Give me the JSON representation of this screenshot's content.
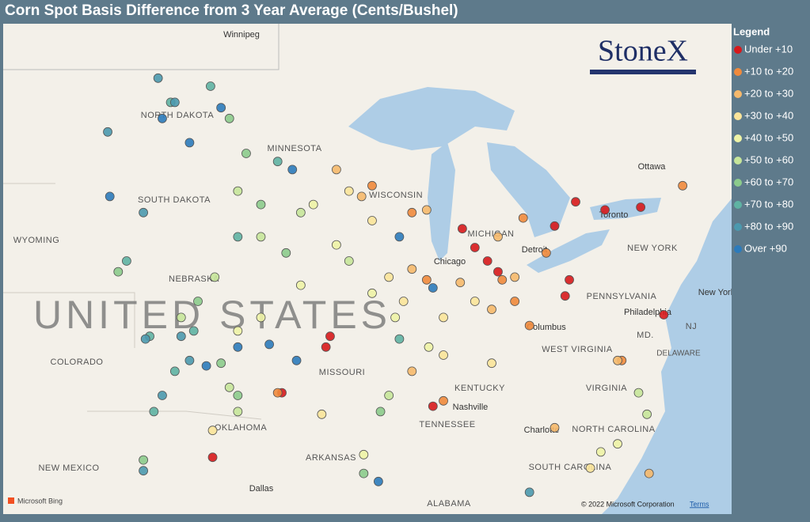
{
  "header": {
    "title": "Corn Spot Basis Difference from 3 Year Average (Cents/Bushel)"
  },
  "legend": {
    "title": "Legend",
    "items": [
      {
        "name": "Under +10",
        "color": "#d7191c",
        "points": [
          [
            -87.0,
            43.1
          ],
          [
            -86.4,
            42.4
          ],
          [
            -81.6,
            44.1
          ],
          [
            -80.2,
            43.8
          ],
          [
            -78.5,
            43.9
          ],
          [
            -81.9,
            41.2
          ],
          [
            -82.1,
            40.6
          ],
          [
            -77.4,
            39.9
          ],
          [
            -93.3,
            39.1
          ],
          [
            -93.5,
            38.7
          ],
          [
            -95.6,
            37.0
          ],
          [
            -98.9,
            34.6
          ],
          [
            -88.4,
            36.5
          ],
          [
            -85.8,
            41.9
          ],
          [
            -82.6,
            43.2
          ],
          [
            -85.3,
            41.5
          ]
        ]
      },
      {
        "name": "+10 to +20",
        "color": "#f08a3c",
        "points": [
          [
            -91.3,
            44.7
          ],
          [
            -89.4,
            43.7
          ],
          [
            -84.1,
            43.5
          ],
          [
            -83.0,
            42.2
          ],
          [
            -85.1,
            41.2
          ],
          [
            -84.5,
            40.4
          ],
          [
            -83.8,
            39.5
          ],
          [
            -88.7,
            41.2
          ],
          [
            -95.8,
            37.0
          ],
          [
            -87.9,
            36.7
          ],
          [
            -76.5,
            44.7
          ],
          [
            -79.4,
            38.2
          ]
        ]
      },
      {
        "name": "+20 to +30",
        "color": "#f6b96c",
        "points": [
          [
            -93.0,
            45.3
          ],
          [
            -91.8,
            44.3
          ],
          [
            -88.7,
            43.8
          ],
          [
            -89.4,
            41.6
          ],
          [
            -87.1,
            41.1
          ],
          [
            -85.6,
            40.1
          ],
          [
            -84.5,
            41.3
          ],
          [
            -85.3,
            42.8
          ],
          [
            -89.4,
            37.8
          ],
          [
            -82.6,
            35.7
          ],
          [
            -79.6,
            38.2
          ],
          [
            -78.1,
            34.0
          ]
        ]
      },
      {
        "name": "+30 to +40",
        "color": "#fbe49a",
        "points": [
          [
            -92.4,
            44.5
          ],
          [
            -91.3,
            43.4
          ],
          [
            -90.5,
            41.3
          ],
          [
            -89.8,
            40.4
          ],
          [
            -87.9,
            39.8
          ],
          [
            -87.9,
            38.4
          ],
          [
            -86.4,
            40.4
          ],
          [
            -98.9,
            35.6
          ],
          [
            -93.7,
            36.2
          ],
          [
            -80.9,
            34.2
          ],
          [
            -85.6,
            38.1
          ]
        ]
      },
      {
        "name": "+40 to +50",
        "color": "#eef3a6",
        "points": [
          [
            -94.1,
            44.0
          ],
          [
            -93.0,
            42.5
          ],
          [
            -94.7,
            41.0
          ],
          [
            -96.6,
            39.8
          ],
          [
            -97.7,
            39.3
          ],
          [
            -91.3,
            40.7
          ],
          [
            -90.2,
            39.8
          ],
          [
            -88.6,
            38.7
          ],
          [
            -91.7,
            34.7
          ],
          [
            -80.4,
            34.8
          ],
          [
            -79.6,
            35.1
          ]
        ]
      },
      {
        "name": "+50 to +60",
        "color": "#c6e59a",
        "points": [
          [
            -97.7,
            44.5
          ],
          [
            -94.7,
            43.7
          ],
          [
            -96.6,
            42.8
          ],
          [
            -98.8,
            41.3
          ],
          [
            -100.4,
            39.8
          ],
          [
            -98.1,
            37.2
          ],
          [
            -97.7,
            36.3
          ],
          [
            -90.5,
            36.9
          ],
          [
            -92.4,
            41.9
          ],
          [
            -78.6,
            37.0
          ],
          [
            -78.2,
            36.2
          ]
        ]
      },
      {
        "name": "+60 to +70",
        "color": "#8ccb8c",
        "points": [
          [
            -98.1,
            47.2
          ],
          [
            -97.3,
            45.9
          ],
          [
            -96.6,
            44.0
          ],
          [
            -95.4,
            42.2
          ],
          [
            -103.4,
            41.5
          ],
          [
            -99.6,
            40.4
          ],
          [
            -98.5,
            38.1
          ],
          [
            -97.7,
            36.9
          ],
          [
            -90.9,
            36.3
          ],
          [
            -91.7,
            34.0
          ],
          [
            -102.2,
            34.5
          ]
        ]
      },
      {
        "name": "+70 to +80",
        "color": "#5fb3a3",
        "points": [
          [
            -100.9,
            47.8
          ],
          [
            -99.0,
            48.4
          ],
          [
            -95.8,
            45.6
          ],
          [
            -97.7,
            42.8
          ],
          [
            -103.0,
            41.9
          ],
          [
            -101.9,
            39.1
          ],
          [
            -99.8,
            39.3
          ],
          [
            -100.7,
            37.8
          ],
          [
            -101.7,
            36.3
          ],
          [
            -90.0,
            39.0
          ]
        ]
      },
      {
        "name": "+80 to +90",
        "color": "#4b99ae",
        "points": [
          [
            -103.9,
            46.7
          ],
          [
            -101.5,
            48.7
          ],
          [
            -100.7,
            47.8
          ],
          [
            -102.2,
            43.7
          ],
          [
            -102.1,
            39.0
          ],
          [
            -100.4,
            39.1
          ],
          [
            -100.0,
            38.2
          ],
          [
            -101.3,
            36.9
          ],
          [
            -102.2,
            34.1
          ],
          [
            -83.8,
            33.3
          ]
        ]
      },
      {
        "name": "Over +90",
        "color": "#2c7bbb",
        "points": [
          [
            -98.5,
            47.6
          ],
          [
            -101.3,
            47.2
          ],
          [
            -100.0,
            46.3
          ],
          [
            -103.8,
            44.3
          ],
          [
            -95.1,
            45.3
          ],
          [
            -90.0,
            42.8
          ],
          [
            -99.2,
            38.0
          ],
          [
            -97.7,
            38.7
          ],
          [
            -96.2,
            38.8
          ],
          [
            -94.9,
            38.2
          ],
          [
            -91.0,
            33.7
          ],
          [
            -88.4,
            40.9
          ]
        ]
      }
    ]
  },
  "map": {
    "labels": [
      "Winnipeg",
      "NORTH DAKOTA",
      "MINNESOTA",
      "SOUTH DAKOTA",
      "WYOMING",
      "WISCONSIN",
      "MICHIGAN",
      "NEBRASKA",
      "UNITED STATES",
      "Chicago",
      "Detroit",
      "Toronto",
      "Ottawa",
      "NEW YORK",
      "PENNSYLVANIA",
      "New York",
      "Philadelphia",
      "MD.",
      "NJ",
      "DELAWARE",
      "Columbus",
      "WEST VIRGINIA",
      "VIRGINIA",
      "KENTUCKY",
      "Nashville",
      "TENNESSEE",
      "MISSOURI",
      "COLORADO",
      "OKLAHOMA",
      "ARKANSAS",
      "NORTH CAROLINA",
      "Charlotte",
      "SOUTH CAROLINA",
      "NEW MEXICO",
      "Dallas",
      "ALABAMA"
    ],
    "logo": "StoneX",
    "provider": "Microsoft Bing",
    "copyright": "© 2022 Microsoft Corporation",
    "terms": "Terms"
  }
}
